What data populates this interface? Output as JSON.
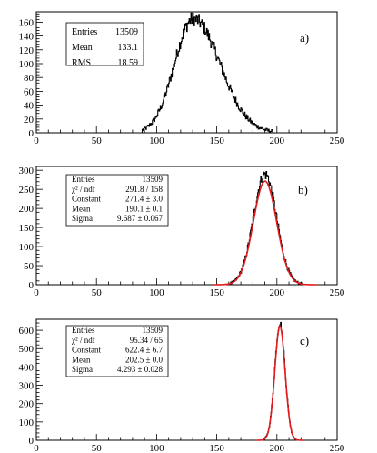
{
  "chart_data": [
    {
      "type": "histogram",
      "panel_label": "a)",
      "xlim": [
        0,
        250
      ],
      "ylim": [
        0,
        175
      ],
      "x_ticks": [
        0,
        50,
        100,
        150,
        200,
        250
      ],
      "y_ticks": [
        0,
        20,
        40,
        60,
        80,
        100,
        120,
        140,
        160
      ],
      "stats": {
        "labels": [
          "Entries",
          "Mean",
          "RMS"
        ],
        "values": [
          "13509",
          "133.1",
          "18.59"
        ]
      },
      "distribution": {
        "mean": 133.1,
        "rms": 18.59,
        "skew": 0.9,
        "peak": 165,
        "noise": 10,
        "x_min": 88,
        "x_max": 197
      },
      "fit": null,
      "hist_color": "#000000",
      "fit_color": "#e41a1c"
    },
    {
      "type": "histogram",
      "panel_label": "b)",
      "xlim": [
        0,
        250
      ],
      "ylim": [
        0,
        310
      ],
      "x_ticks": [
        0,
        50,
        100,
        150,
        200,
        250
      ],
      "y_ticks": [
        0,
        50,
        100,
        150,
        200,
        250,
        300
      ],
      "stats": {
        "labels": [
          "Entries",
          "χ² / ndf",
          "Constant",
          "Mean",
          "Sigma"
        ],
        "values": [
          "13509",
          "291.8 / 158",
          "271.4 ± 3.0",
          "190.1 ± 0.1",
          "9.687 ± 0.067"
        ]
      },
      "distribution": {
        "mean": 190.1,
        "rms": 9.687,
        "skew": 0.0,
        "peak": 290,
        "noise": 14,
        "x_min": 160,
        "x_max": 222
      },
      "fit": {
        "constant": 271.4,
        "mean": 190.1,
        "sigma": 9.687
      },
      "hist_color": "#000000",
      "fit_color": "#e41a1c"
    },
    {
      "type": "histogram",
      "panel_label": "c)",
      "xlim": [
        0,
        250
      ],
      "ylim": [
        0,
        660
      ],
      "x_ticks": [
        0,
        50,
        100,
        150,
        200,
        250
      ],
      "y_ticks": [
        0,
        100,
        200,
        300,
        400,
        500,
        600
      ],
      "stats": {
        "labels": [
          "Entries",
          "χ² / ndf",
          "Constant",
          "Mean",
          "Sigma"
        ],
        "values": [
          "13509",
          "95.34 / 65",
          "622.4 ± 6.7",
          "202.5 ± 0.0",
          "4.293 ± 0.028"
        ]
      },
      "distribution": {
        "mean": 202.5,
        "rms": 4.293,
        "skew": 0.0,
        "peak": 640,
        "noise": 18,
        "x_min": 189,
        "x_max": 215
      },
      "fit": {
        "constant": 622.4,
        "mean": 202.5,
        "sigma": 4.293
      },
      "hist_color": "#000000",
      "fit_color": "#e41a1c"
    }
  ]
}
